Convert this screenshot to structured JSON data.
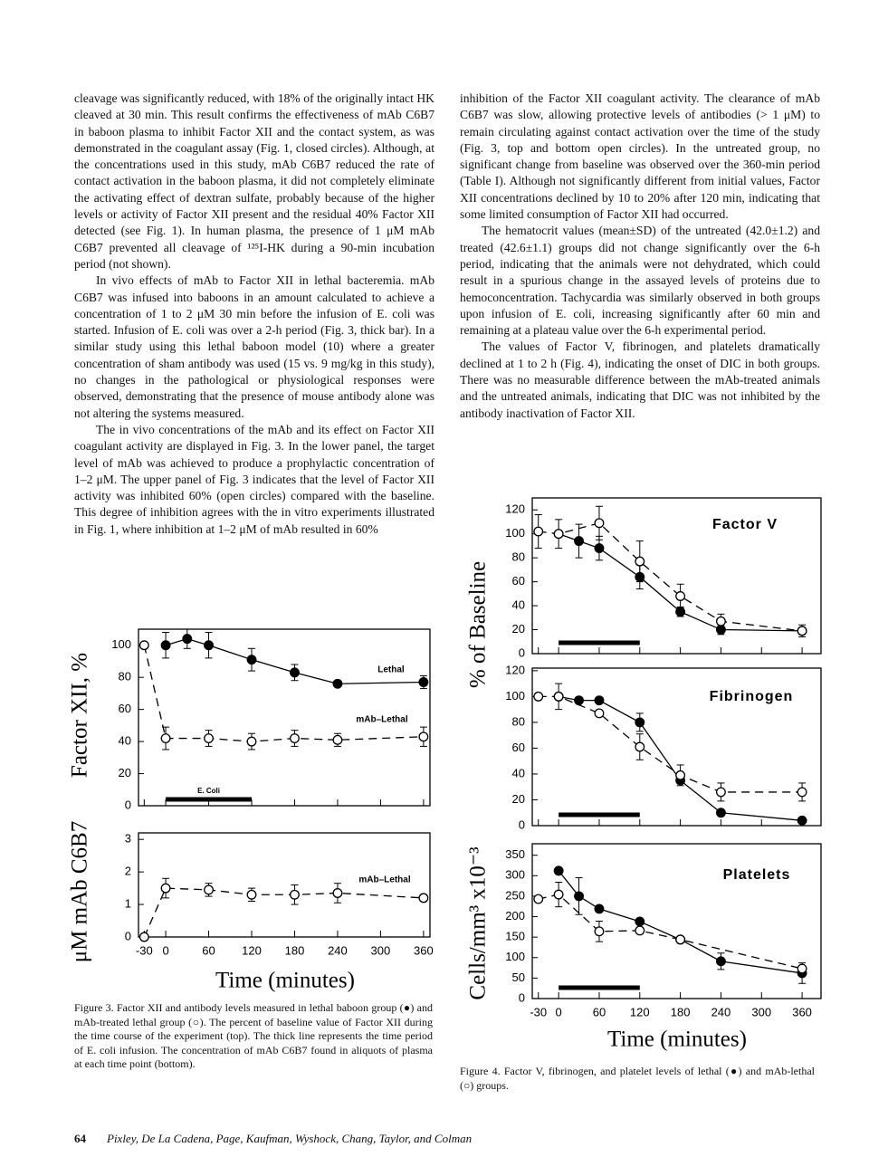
{
  "page": {
    "left_column": [
      "cleavage was significantly reduced, with 18% of the originally intact HK cleaved at 30 min. This result confirms the effectiveness of mAb C6B7 in baboon plasma to inhibit Factor XII and the contact system, as was demonstrated in the coagulant assay (Fig. 1, closed circles). Although, at the concentrations used in this study, mAb C6B7 reduced the rate of contact activation in the baboon plasma, it did not completely eliminate the activating effect of dextran sulfate, probably because of the higher levels or activity of Factor XII present and the residual 40% Factor XII detected (see Fig. 1). In human plasma, the presence of 1 μM mAb C6B7 prevented all cleavage of ¹²⁵I-HK during a 90-min incubation period (not shown).",
      "In vivo effects of mAb to Factor XII in lethal bacteremia. mAb C6B7 was infused into baboons in an amount calculated to achieve a concentration of 1 to 2 μM 30 min before the infusion of E. coli was started. Infusion of E. coli was over a 2-h period (Fig. 3, thick bar). In a similar study using this lethal baboon model (10) where a greater concentration of sham antibody was used (15 vs. 9 mg/kg in this study), no changes in the pathological or physiological responses were observed, demonstrating that the presence of mouse antibody alone was not altering the systems measured.",
      "The in vivo concentrations of the mAb and its effect on Factor XII coagulant activity are displayed in Fig. 3. In the lower panel, the target level of mAb was achieved to produce a prophylactic concentration of 1–2 μM. The upper panel of Fig. 3 indicates that the level of Factor XII activity was inhibited 60% (open circles) compared with the baseline. This degree of inhibition agrees with the in vitro experiments illustrated in Fig. 1, where inhibition at 1–2 μM of mAb resulted in 60%"
    ],
    "right_column": [
      "inhibition of the Factor XII coagulant activity. The clearance of mAb C6B7 was slow, allowing protective levels of antibodies (> 1 μM) to remain circulating against contact activation over the time of the study (Fig. 3, top and bottom open circles). In the untreated group, no significant change from baseline was observed over the 360-min period (Table I). Although not significantly different from initial values, Factor XII concentrations declined by 10 to 20% after 120 min, indicating that some limited consumption of Factor XII had occurred.",
      "The hematocrit values (mean±SD) of the untreated (42.0±1.2) and treated (42.6±1.1) groups did not change significantly over the 6-h period, indicating that the animals were not dehydrated, which could result in a spurious change in the assayed levels of proteins due to hemoconcentration. Tachycardia was similarly observed in both groups upon infusion of E. coli, increasing significantly after 60 min and remaining at a plateau value over the 6-h experimental period.",
      "The values of Factor V, fibrinogen, and platelets dramatically declined at 1 to 2 h (Fig. 4), indicating the onset of DIC in both groups. There was no measurable difference between the mAb-treated animals and the untreated animals, indicating that DIC was not inhibited by the antibody inactivation of Factor XII."
    ],
    "figure3_caption": "Figure 3. Factor XII and antibody levels measured in lethal baboon group (●) and mAb-treated lethal group (○). The percent of baseline value of Factor XII during the time course of the experiment (top). The thick line represents the time period of E. coli infusion. The concentration of mAb C6B7 found in aliquots of plasma at each time point (bottom).",
    "figure4_caption": "Figure 4. Factor V, fibrinogen, and platelet levels of lethal (●) and mAb-lethal (○) groups.",
    "page_number": "64",
    "running_footer": "Pixley, De La Cadena, Page, Kaufman, Wyshock, Chang, Taylor, and Colman"
  },
  "chart_data": [
    {
      "type": "line",
      "ylabel": "Factor XII, %",
      "xlim": [
        -38,
        369
      ],
      "ylim": [
        0,
        110
      ],
      "yticks": [
        0,
        20,
        40,
        60,
        80,
        100
      ],
      "infusion": [
        0,
        120
      ],
      "infusion_label": "E. Coli",
      "series": [
        {
          "name": "Lethal",
          "color": "#000000",
          "marker": "filled",
          "x": [
            0,
            30,
            60,
            120,
            180,
            240,
            360
          ],
          "values": [
            100,
            104,
            100,
            91,
            83,
            76,
            77
          ],
          "errors": [
            8,
            6,
            8,
            7,
            5,
            0,
            4
          ]
        },
        {
          "name": "mAb–Lethal",
          "color": "#000000",
          "marker": "open",
          "dashed": true,
          "x": [
            -30,
            0,
            60,
            120,
            180,
            240,
            360
          ],
          "values": [
            100,
            42,
            42,
            40,
            42,
            41,
            43
          ],
          "errors": [
            0,
            7,
            5,
            5,
            5,
            4,
            6
          ]
        }
      ]
    },
    {
      "type": "line",
      "ylabel": "μM mAb C6B7",
      "xlabel": "Time (minutes)",
      "xlim": [
        -38,
        369
      ],
      "ylim": [
        0,
        3.2
      ],
      "yticks": [
        0,
        1,
        2,
        3
      ],
      "xticks": [
        -30,
        0,
        60,
        120,
        180,
        240,
        300,
        360
      ],
      "series": [
        {
          "name": "mAb–Lethal",
          "color": "#000000",
          "marker": "open",
          "dashed": true,
          "x": [
            -30,
            0,
            60,
            120,
            180,
            240,
            360
          ],
          "values": [
            0,
            1.5,
            1.45,
            1.3,
            1.3,
            1.35,
            1.2
          ],
          "errors": [
            0,
            0.3,
            0.2,
            0.2,
            0.3,
            0.3,
            0.1
          ]
        }
      ]
    },
    {
      "type": "line",
      "title": "Factor V",
      "ylabel": "% of Baseline",
      "xlim": [
        -39,
        388
      ],
      "ylim": [
        0,
        130
      ],
      "yticks": [
        0,
        20,
        40,
        60,
        80,
        100,
        120
      ],
      "infusion": [
        0,
        120
      ],
      "series": [
        {
          "color": "#000000",
          "marker": "filled",
          "x": [
            0,
            30,
            60,
            120,
            180,
            240,
            360
          ],
          "values": [
            100,
            94,
            88,
            64,
            35,
            20,
            19
          ],
          "errors": [
            12,
            14,
            10,
            10,
            4,
            4,
            5
          ]
        },
        {
          "color": "#000000",
          "marker": "open",
          "dashed": true,
          "x": [
            -30,
            0,
            60,
            120,
            180,
            240,
            360
          ],
          "values": [
            102,
            100,
            109,
            77,
            48,
            27,
            19
          ],
          "errors": [
            14,
            0,
            14,
            17,
            10,
            6,
            0
          ]
        }
      ]
    },
    {
      "type": "line",
      "title": "Fibrinogen",
      "xlim": [
        -39,
        388
      ],
      "ylim": [
        0,
        122
      ],
      "yticks": [
        0,
        20,
        40,
        60,
        80,
        100,
        120
      ],
      "infusion": [
        0,
        120
      ],
      "series": [
        {
          "color": "#000000",
          "marker": "filled",
          "x": [
            0,
            30,
            60,
            120,
            180,
            240,
            360
          ],
          "values": [
            100,
            97,
            97,
            80,
            35,
            10,
            4
          ],
          "errors": [
            0,
            0,
            0,
            7,
            0,
            0,
            0
          ]
        },
        {
          "color": "#000000",
          "marker": "open",
          "dashed": true,
          "x": [
            -30,
            0,
            60,
            120,
            180,
            240,
            360
          ],
          "values": [
            100,
            100,
            87,
            61,
            39,
            26,
            26
          ],
          "errors": [
            0,
            10,
            0,
            10,
            8,
            7,
            7
          ]
        }
      ]
    },
    {
      "type": "line",
      "title": "Platelets",
      "ylabel": "Cells/mm³ x10⁻³",
      "xlabel": "Time (minutes)",
      "xlim": [
        -39,
        388
      ],
      "ylim": [
        0,
        378
      ],
      "yticks": [
        0,
        50,
        100,
        150,
        200,
        250,
        300,
        350
      ],
      "xticks": [
        -30,
        0,
        60,
        120,
        180,
        240,
        300,
        360
      ],
      "infusion": [
        0,
        120
      ],
      "series": [
        {
          "color": "#000000",
          "marker": "filled",
          "x": [
            0,
            30,
            60,
            120,
            180,
            240,
            360
          ],
          "values": [
            312,
            250,
            219,
            188,
            144,
            91,
            62
          ],
          "errors": [
            0,
            45,
            0,
            0,
            0,
            20,
            25
          ]
        },
        {
          "color": "#000000",
          "marker": "open",
          "dashed": true,
          "x": [
            -30,
            0,
            60,
            120,
            180,
            360
          ],
          "values": [
            243,
            254,
            164,
            166,
            144,
            73
          ],
          "errors": [
            0,
            30,
            25,
            0,
            0,
            0
          ]
        }
      ]
    }
  ]
}
